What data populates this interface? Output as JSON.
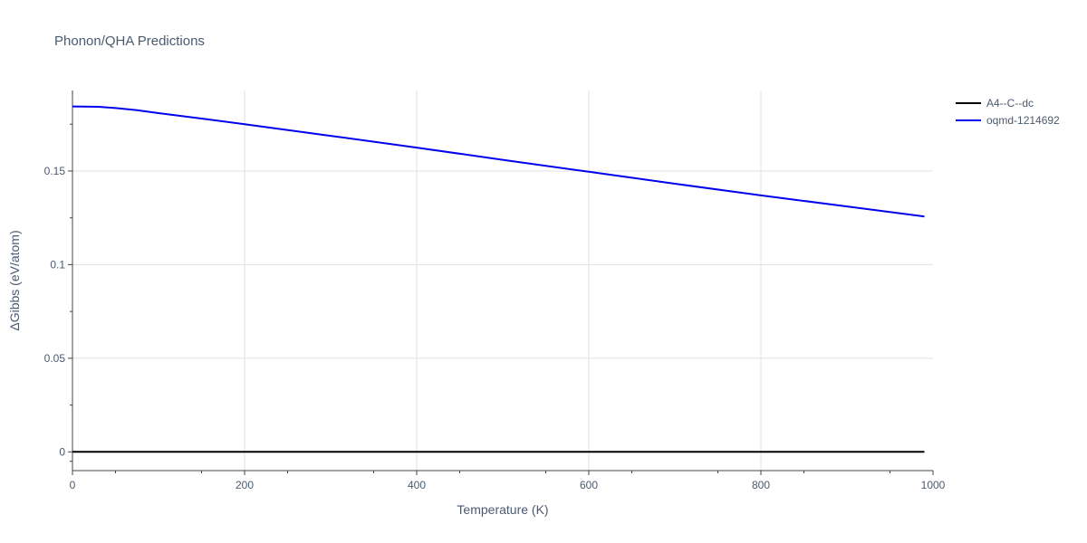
{
  "chart_data": {
    "type": "line",
    "title": "Phonon/QHA Predictions",
    "xlabel": "Temperature (K)",
    "ylabel": "ΔGibbs (eV/atom)",
    "xlim": [
      0,
      1000
    ],
    "ylim": [
      -0.01,
      0.193
    ],
    "x_ticks": [
      0,
      200,
      400,
      600,
      800,
      1000
    ],
    "x_tick_labels": [
      "0",
      "200",
      "400",
      "600",
      "800",
      "1000"
    ],
    "y_ticks": [
      0,
      0.05,
      0.1,
      0.15
    ],
    "y_tick_labels": [
      "0",
      "0.05",
      "0.1",
      "0.15"
    ],
    "grid": true,
    "legend_position": "top-right",
    "series": [
      {
        "name": "A4--C--dc",
        "color": "#000000",
        "x": [
          0,
          990
        ],
        "y": [
          0,
          0
        ]
      },
      {
        "name": "oqmd-1214692",
        "color": "#0000ee",
        "x": [
          0,
          30,
          50,
          75,
          100,
          150,
          200,
          300,
          400,
          500,
          600,
          700,
          800,
          900,
          990
        ],
        "y": [
          0.1845,
          0.1843,
          0.1836,
          0.1825,
          0.1809,
          0.178,
          0.175,
          0.1688,
          0.1625,
          0.156,
          0.1496,
          0.1432,
          0.137,
          0.1311,
          0.1257
        ]
      }
    ]
  }
}
